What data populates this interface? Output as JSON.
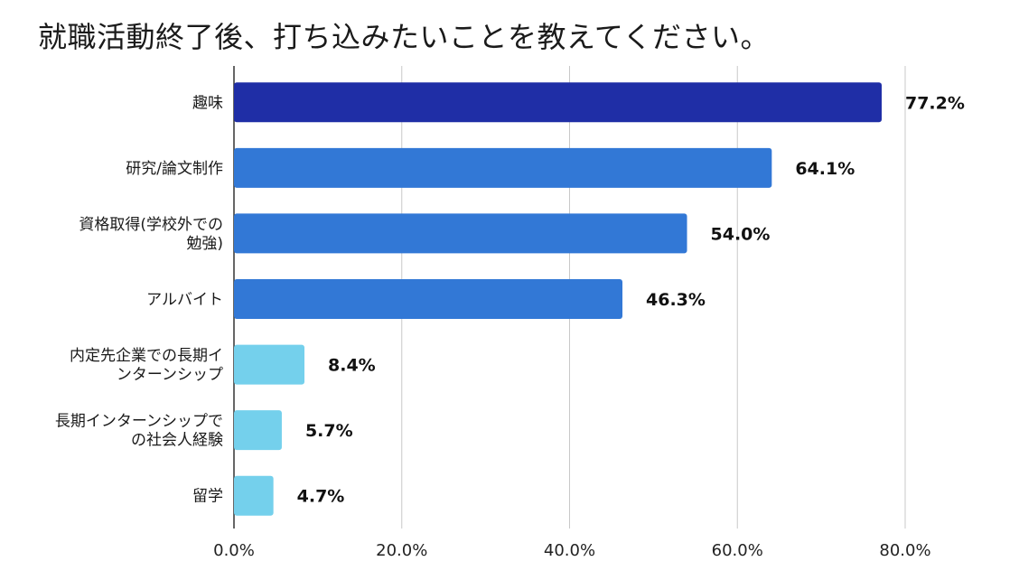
{
  "chart_data": {
    "type": "bar",
    "orientation": "horizontal",
    "title": "就職活動終了後、打ち込みたいことを教えてください。",
    "categories": [
      [
        "趣味"
      ],
      [
        "研究/論文制作"
      ],
      [
        "資格取得(学校外での",
        "勉強)"
      ],
      [
        "アルバイト"
      ],
      [
        "内定先企業での長期イ",
        "ンターンシップ"
      ],
      [
        "長期インターンシップで",
        "の社会人経験"
      ],
      [
        "留学"
      ]
    ],
    "values": [
      77.2,
      64.1,
      54.0,
      46.3,
      8.4,
      5.7,
      4.7
    ],
    "value_labels": [
      "77.2%",
      "64.1%",
      "54.0%",
      "46.3%",
      "8.4%",
      "5.7%",
      "4.7%"
    ],
    "bar_colors": [
      "#1f2ea6",
      "#3278d6",
      "#3278d6",
      "#3278d6",
      "#74d0ec",
      "#74d0ec",
      "#74d0ec"
    ],
    "xlim": [
      0,
      80
    ],
    "x_ticks": [
      0,
      20,
      40,
      60,
      80
    ],
    "x_tick_labels": [
      "0.0%",
      "20.0%",
      "40.0%",
      "60.0%",
      "80.0%"
    ],
    "xlabel": "",
    "ylabel": "",
    "grid": true,
    "legend": "none"
  }
}
